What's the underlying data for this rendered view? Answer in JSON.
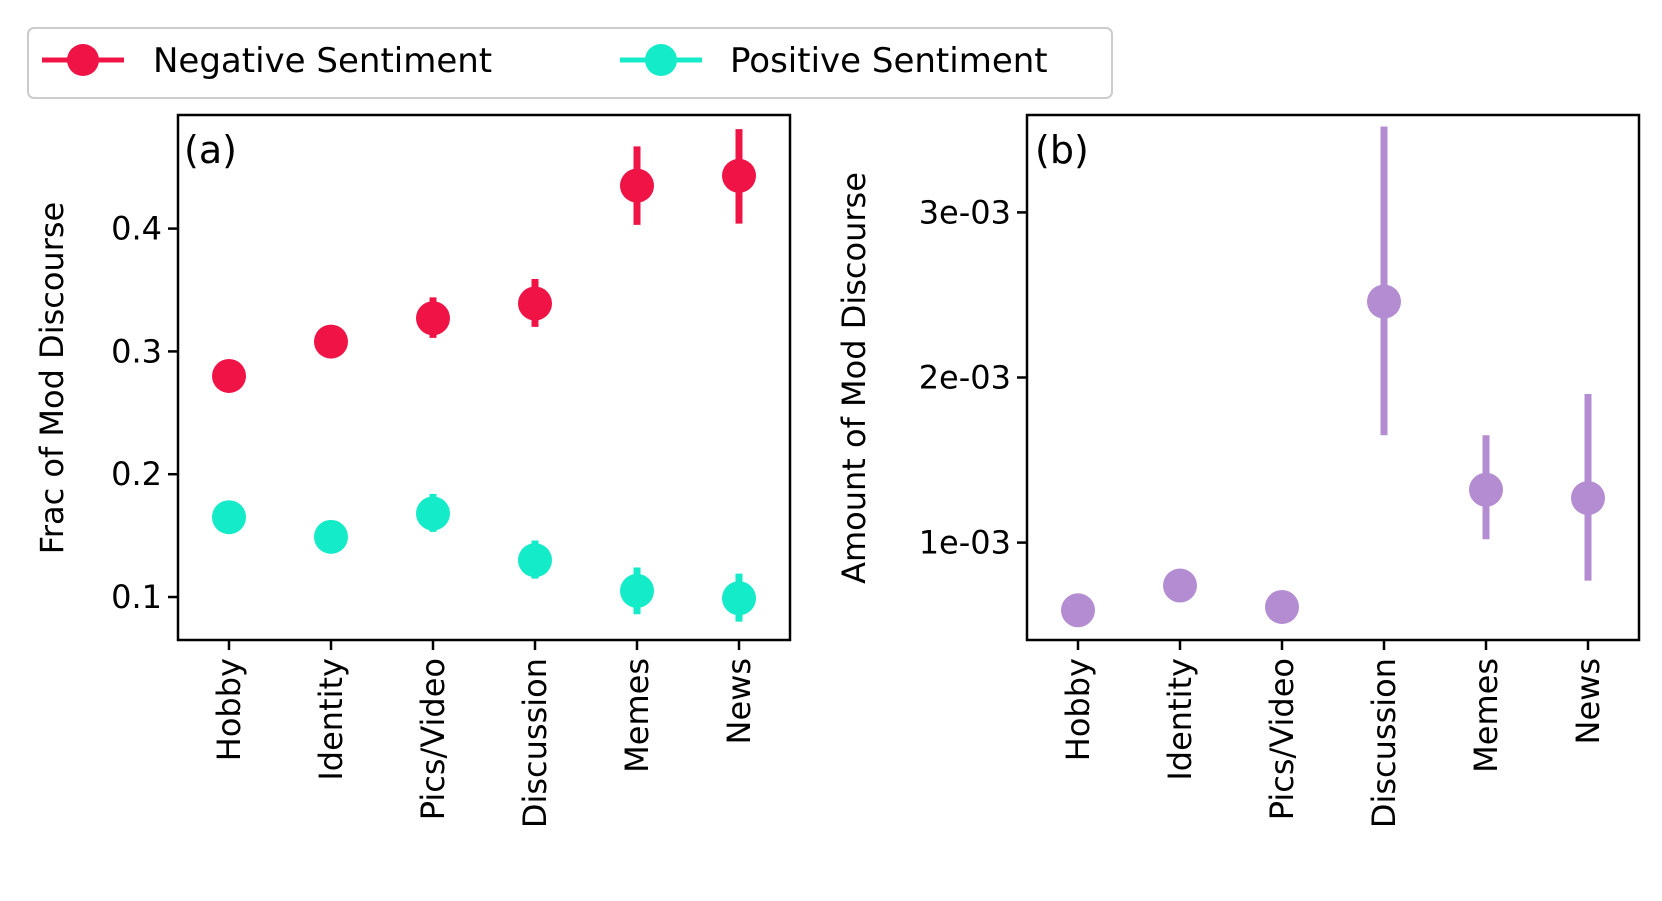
{
  "legend": {
    "entries": [
      {
        "label": "Negative Sentiment",
        "color": "#f01446"
      },
      {
        "label": "Positive Sentiment",
        "color": "#14ebc8"
      }
    ]
  },
  "chart_data": [
    {
      "type": "scatter",
      "panel_label": "(a)",
      "categories": [
        "Hobby",
        "Identity",
        "Pics/Video",
        "Discussion",
        "Memes",
        "News"
      ],
      "ylabel": "Frac of Mod Discourse",
      "xlabel": "",
      "ylim": [
        0.065,
        0.4925
      ],
      "yticks": [
        0.1,
        0.2,
        0.3,
        0.4
      ],
      "ytick_labels": [
        "0.1",
        "0.2",
        "0.3",
        "0.4"
      ],
      "grid": false,
      "legend_position": "top-left, above plots",
      "series": [
        {
          "name": "Negative Sentiment",
          "color": "#f01446",
          "values": [
            0.28,
            0.308,
            0.327,
            0.339,
            0.435,
            0.443
          ],
          "err_low": [
            0.28,
            0.308,
            0.311,
            0.32,
            0.403,
            0.404
          ],
          "err_high": [
            0.28,
            0.308,
            0.344,
            0.359,
            0.467,
            0.481
          ]
        },
        {
          "name": "Positive Sentiment",
          "color": "#14ebc8",
          "values": [
            0.165,
            0.149,
            0.168,
            0.13,
            0.105,
            0.099
          ],
          "err_low": [
            0.165,
            0.149,
            0.153,
            0.115,
            0.086,
            0.08
          ],
          "err_high": [
            0.165,
            0.149,
            0.184,
            0.146,
            0.124,
            0.119
          ]
        }
      ]
    },
    {
      "type": "scatter",
      "panel_label": "(b)",
      "categories": [
        "Hobby",
        "Identity",
        "Pics/Video",
        "Discussion",
        "Memes",
        "News"
      ],
      "ylabel": "Amount of Mod Discourse",
      "xlabel": "",
      "ylim": [
        0.00041,
        0.00359
      ],
      "yticks": [
        0.001,
        0.002,
        0.003
      ],
      "ytick_labels": [
        "1e-03",
        "2e-03",
        "3e-03"
      ],
      "grid": false,
      "series": [
        {
          "color": "#b48cd2",
          "values": [
            0.00059,
            0.00074,
            0.00061,
            0.00246,
            0.00132,
            0.00127
          ],
          "err_low": [
            0.00059,
            0.00074,
            0.00061,
            0.00165,
            0.00102,
            0.00077
          ],
          "err_high": [
            0.00059,
            0.00074,
            0.00061,
            0.00352,
            0.00165,
            0.0019
          ]
        }
      ]
    }
  ]
}
